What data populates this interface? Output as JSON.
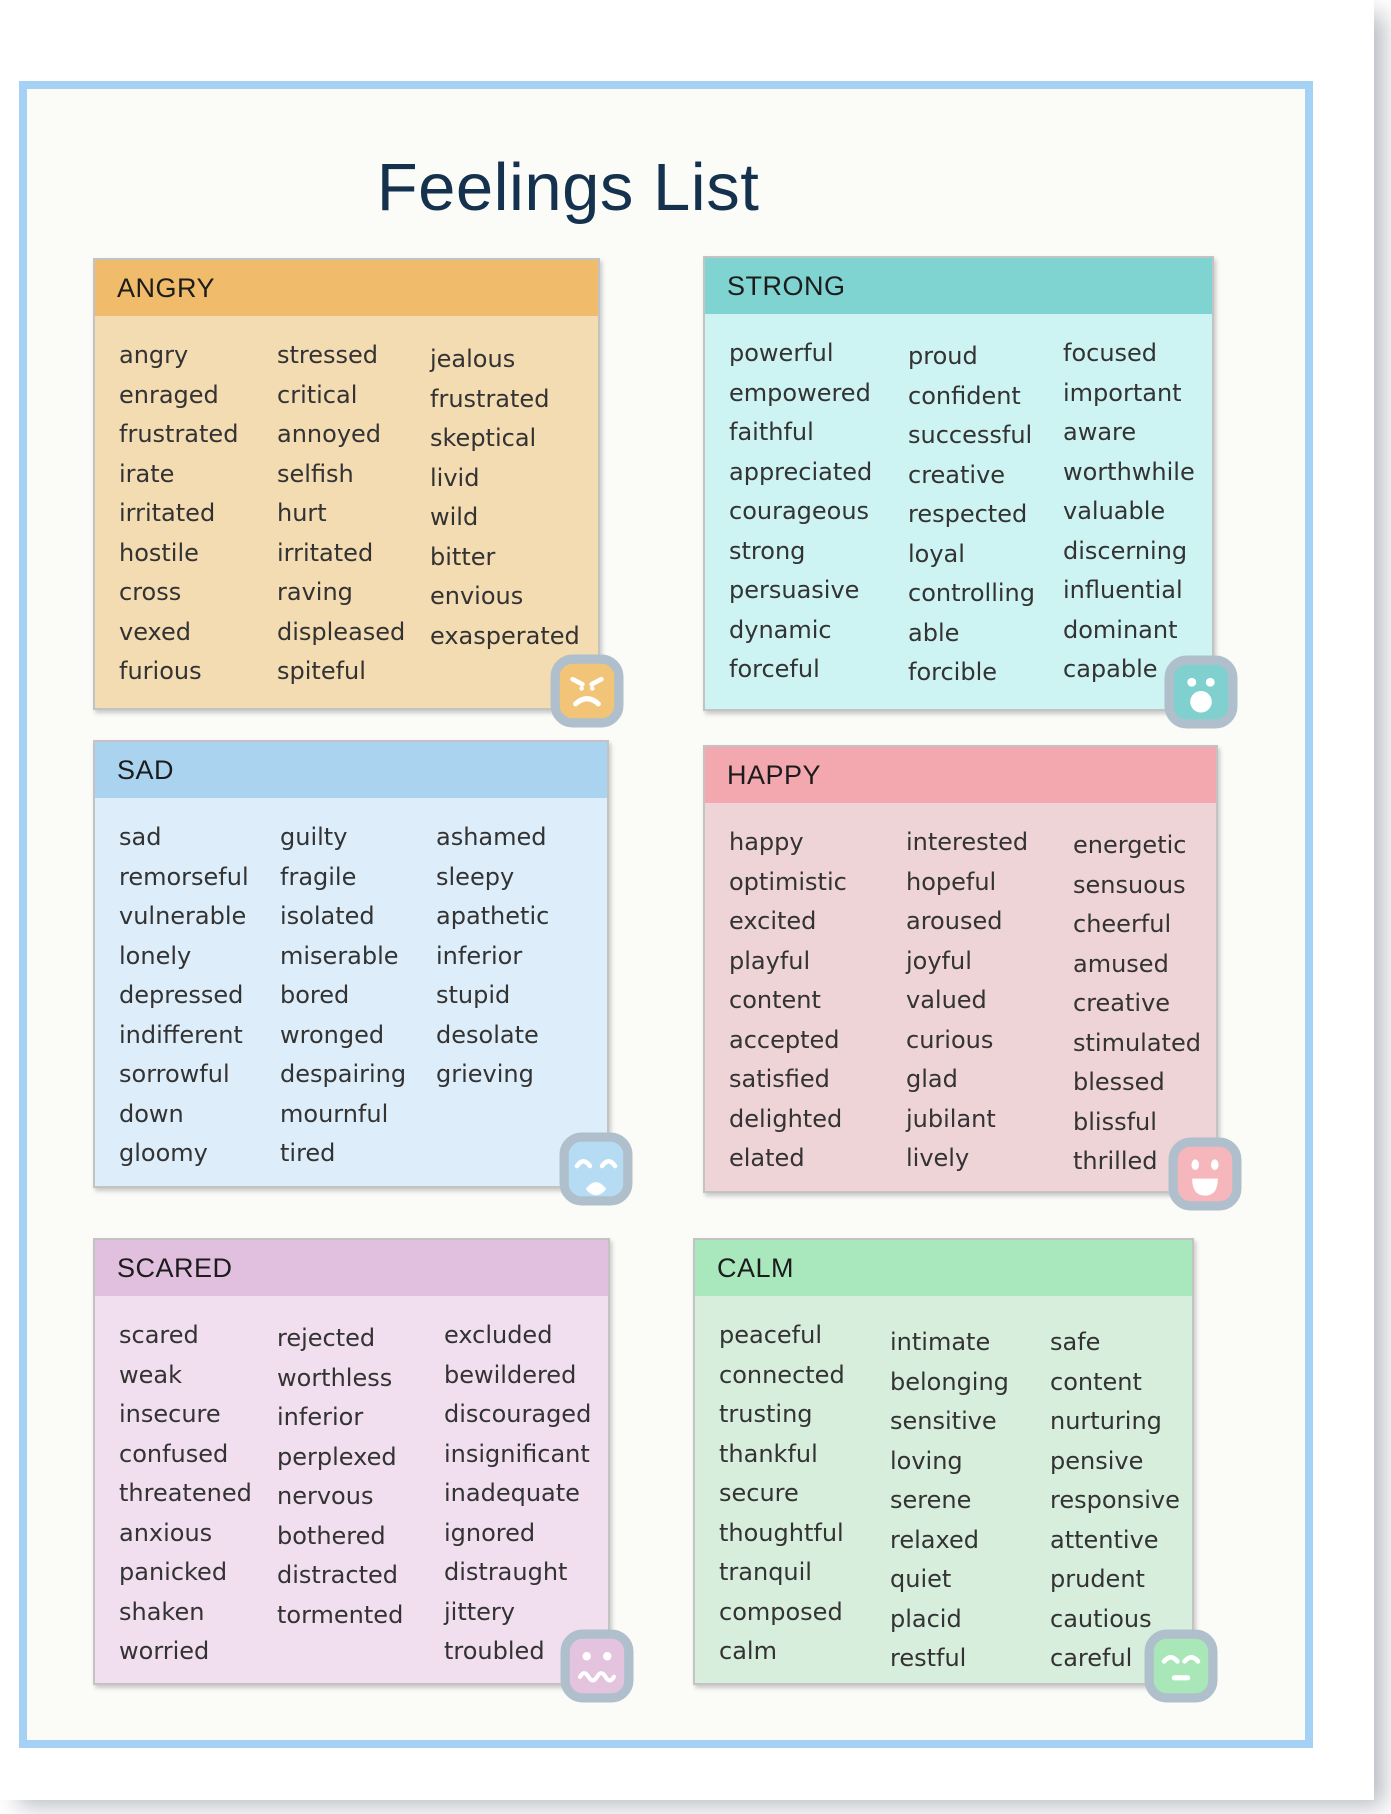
{
  "page": {
    "title": "Feelings List",
    "title_color": "#14324E",
    "frame_border_color": "#A5D2F4",
    "background_color": "#FBFBF8",
    "word_color": "#333333",
    "icon_border_color": "#AFBFCB"
  },
  "categories": [
    {
      "id": "angry",
      "label": "ANGRY",
      "icon": "angry-face-icon",
      "colors": {
        "header": "#F0BC6B",
        "body": "#F3DBB2",
        "icon": "#F2C478"
      },
      "columns": [
        [
          "angry",
          "enraged",
          "frustrated",
          "irate",
          "irritated",
          "hostile",
          "cross",
          "vexed",
          "furious"
        ],
        [
          "stressed",
          "critical",
          "annoyed",
          "selfish",
          "hurt",
          "irritated",
          "raving",
          "displeased",
          "spiteful"
        ],
        [
          "jealous",
          "frustrated",
          "skeptical",
          "livid",
          "wild",
          "bitter",
          "envious",
          "exasperated"
        ]
      ]
    },
    {
      "id": "strong",
      "label": "STRONG",
      "icon": "surprised-face-icon",
      "colors": {
        "header": "#7FD3D1",
        "body": "#CDF4F2",
        "icon": "#7FD0CE"
      },
      "columns": [
        [
          "powerful",
          "empowered",
          "faithful",
          "appreciated",
          "courageous",
          "strong",
          "persuasive",
          "dynamic",
          "forceful"
        ],
        [
          "proud",
          "confident",
          "successful",
          "creative",
          "respected",
          "loyal",
          "controlling",
          "able",
          "forcible"
        ],
        [
          "focused",
          "important",
          "aware",
          "worthwhile",
          "valuable",
          "discerning",
          "influential",
          "dominant",
          "capable"
        ]
      ]
    },
    {
      "id": "sad",
      "label": "SAD",
      "icon": "sad-face-icon",
      "colors": {
        "header": "#AAD3EF",
        "body": "#DDEEFA",
        "icon": "#B6DCF4"
      },
      "columns": [
        [
          "sad",
          "remorseful",
          "vulnerable",
          "lonely",
          "depressed",
          "indifferent",
          "sorrowful",
          "down",
          "gloomy"
        ],
        [
          "guilty",
          "fragile",
          "isolated",
          "miserable",
          "bored",
          "wronged",
          "despairing",
          "mournful",
          "tired"
        ],
        [
          "ashamed",
          "sleepy",
          "apathetic",
          "inferior",
          "stupid",
          "desolate",
          "grieving"
        ]
      ]
    },
    {
      "id": "happy",
      "label": "HAPPY",
      "icon": "happy-face-icon",
      "colors": {
        "header": "#F3A8AF",
        "body": "#EED3D7",
        "icon": "#F5B7BC"
      },
      "columns": [
        [
          "happy",
          "optimistic",
          "excited",
          "playful",
          "content",
          "accepted",
          "satisfied",
          "delighted",
          "elated"
        ],
        [
          "interested",
          "hopeful",
          "aroused",
          "joyful",
          "valued",
          "curious",
          "glad",
          "jubilant",
          "lively"
        ],
        [
          "energetic",
          "sensuous",
          "cheerful",
          "amused",
          "creative",
          "stimulated",
          "blessed",
          "blissful",
          "thrilled"
        ]
      ]
    },
    {
      "id": "scared",
      "label": "SCARED",
      "icon": "scared-face-icon",
      "colors": {
        "header": "#E1BFDE",
        "body": "#F1DFF0",
        "icon": "#E3C3DE"
      },
      "columns": [
        [
          "scared",
          "weak",
          "insecure",
          "confused",
          "threatened",
          "anxious",
          "panicked",
          "shaken",
          "worried"
        ],
        [
          "rejected",
          "worthless",
          "inferior",
          "perplexed",
          "nervous",
          "bothered",
          "distracted",
          "tormented"
        ],
        [
          "excluded",
          "bewildered",
          "discouraged",
          "insignificant",
          "inadequate",
          "ignored",
          "distraught",
          "jittery",
          "troubled"
        ]
      ]
    },
    {
      "id": "calm",
      "label": "CALM",
      "icon": "calm-face-icon",
      "colors": {
        "header": "#A9E8BC",
        "body": "#D8EEDC",
        "icon": "#A9E6B8"
      },
      "columns": [
        [
          "peaceful",
          "connected",
          "trusting",
          "thankful",
          "secure",
          "thoughtful",
          "tranquil",
          "composed",
          "calm"
        ],
        [
          "intimate",
          "belonging",
          "sensitive",
          "loving",
          "serene",
          "relaxed",
          "quiet",
          "placid",
          "restful"
        ],
        [
          "safe",
          "content",
          "nurturing",
          "pensive",
          "responsive",
          "attentive",
          "prudent",
          "cautious",
          "careful"
        ]
      ]
    }
  ]
}
